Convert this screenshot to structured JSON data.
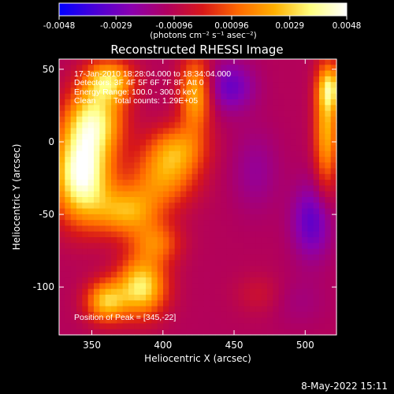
{
  "colorbar": {
    "tick_labels": [
      "-0.0048",
      "-0.0029",
      "-0.00096",
      "0.00096",
      "0.0029",
      "0.0048"
    ],
    "tick_values": [
      -0.0048,
      -0.0029,
      -0.00096,
      0.00096,
      0.0029,
      0.0048
    ],
    "range": [
      -0.0048,
      0.0048
    ],
    "units_label": "(photons cm⁻² s⁻¹ asec⁻²)",
    "colormap": [
      "#0000ff",
      "#4a00d8",
      "#8a00b0",
      "#b00060",
      "#d81818",
      "#ff6a00",
      "#ffb000",
      "#ffff80",
      "#ffffff"
    ]
  },
  "chart_data": {
    "type": "heatmap",
    "title": "Reconstructed RHESSI Image",
    "xlabel": "Heliocentric X (arcsec)",
    "ylabel": "Heliocentric Y (arcsec)",
    "xlim": [
      327,
      522
    ],
    "ylim": [
      -133,
      57
    ],
    "x_ticks": [
      350,
      400,
      450,
      500
    ],
    "y_ticks": [
      50,
      0,
      -50,
      -100
    ],
    "x_tick_labels": [
      "350",
      "400",
      "450",
      "500"
    ],
    "y_tick_labels": [
      "50",
      "0",
      "-50",
      "-100"
    ],
    "peak": [
      345,
      -22
    ],
    "sources": [
      {
        "x": 343,
        "y": -22,
        "value": 0.0048,
        "sx": 14,
        "sy": 22
      },
      {
        "x": 352,
        "y": 15,
        "value": 0.003,
        "sx": 14,
        "sy": 16
      },
      {
        "x": 362,
        "y": 42,
        "value": 0.0028,
        "sx": 12,
        "sy": 10
      },
      {
        "x": 375,
        "y": -48,
        "value": 0.0022,
        "sx": 16,
        "sy": 12
      },
      {
        "x": 385,
        "y": -100,
        "value": 0.0034,
        "sx": 12,
        "sy": 14
      },
      {
        "x": 360,
        "y": -110,
        "value": 0.0026,
        "sx": 10,
        "sy": 10
      },
      {
        "x": 400,
        "y": -25,
        "value": 0.0016,
        "sx": 16,
        "sy": 14
      },
      {
        "x": 423,
        "y": 33,
        "value": 0.0024,
        "sx": 8,
        "sy": 18
      },
      {
        "x": 410,
        "y": -5,
        "value": 0.0016,
        "sx": 14,
        "sy": 12
      },
      {
        "x": 395,
        "y": -70,
        "value": 0.0012,
        "sx": 12,
        "sy": 10
      },
      {
        "x": 515,
        "y": 10,
        "value": 0.0024,
        "sx": 6,
        "sy": 30
      },
      {
        "x": 518,
        "y": 37,
        "value": 0.0018,
        "sx": 6,
        "sy": 10
      },
      {
        "x": 468,
        "y": -105,
        "value": -0.0004,
        "sx": 12,
        "sy": 10
      },
      {
        "x": 447,
        "y": 38,
        "value": -0.003,
        "sx": 12,
        "sy": 12
      },
      {
        "x": 505,
        "y": -55,
        "value": -0.0032,
        "sx": 10,
        "sy": 18
      },
      {
        "x": 465,
        "y": -20,
        "value": -0.002,
        "sx": 12,
        "sy": 20
      },
      {
        "x": 495,
        "y": -110,
        "value": -0.0016,
        "sx": 14,
        "sy": 12
      }
    ],
    "background_value": -0.0011,
    "grid": false
  },
  "annotations": {
    "time_range": "17-Jan-2010 18:28:04.000 to 18:34:04.000",
    "detectors": "Detectors: 3F 4F 5F 6F 7F 8F, Att 0",
    "energy_range": "Energy Range: 100.0 - 300.0 keV",
    "method": "Clean",
    "total_counts": "Total counts: 1.29E+05",
    "peak_position": "Position of Peak = [345,-22]"
  },
  "footer": {
    "date": "8-May-2022 15:11"
  }
}
